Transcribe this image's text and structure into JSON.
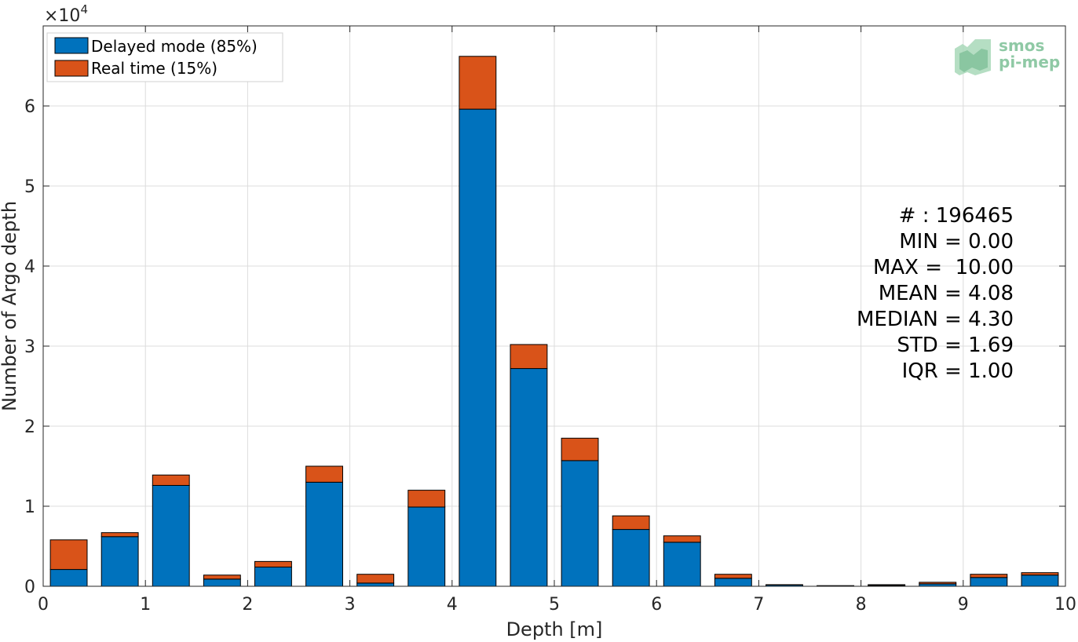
{
  "chart_data": {
    "type": "bar",
    "stacked": true,
    "x": [
      0.25,
      0.75,
      1.25,
      1.75,
      2.25,
      2.75,
      3.25,
      3.75,
      4.25,
      4.75,
      5.25,
      5.75,
      6.25,
      6.75,
      7.25,
      7.75,
      8.25,
      8.75,
      9.25,
      9.75
    ],
    "bin_width": 0.5,
    "series": [
      {
        "name": "Delayed mode (85%)",
        "color": "#0072bd",
        "values": [
          2100,
          6200,
          12600,
          900,
          2400,
          13000,
          400,
          9900,
          59600,
          27200,
          15700,
          7100,
          5500,
          1000,
          150,
          50,
          100,
          300,
          1100,
          1400
        ]
      },
      {
        "name": "Real time (15%)",
        "color": "#d95319",
        "values": [
          3700,
          500,
          1300,
          500,
          700,
          2000,
          1100,
          2100,
          6600,
          3000,
          2800,
          1700,
          800,
          500,
          50,
          30,
          100,
          200,
          400,
          300
        ]
      }
    ],
    "xlabel": "Depth [m]",
    "ylabel": "Number of Argo depth",
    "xlim": [
      0,
      10
    ],
    "ylim": [
      0,
      70000
    ],
    "xticks": [
      "0",
      "1",
      "2",
      "3",
      "4",
      "5",
      "6",
      "7",
      "8",
      "9",
      "10"
    ],
    "yticks": [
      "0",
      "1",
      "2",
      "3",
      "4",
      "5",
      "6"
    ],
    "y_exponent_base": "×10",
    "y_exponent_power": "4",
    "grid": true,
    "legend_position": "top-left",
    "stats": [
      "# : 196465",
      "MIN = 0.00",
      "MAX =  10.00",
      "MEAN = 4.08",
      "MEDIAN = 4.30",
      "STD = 1.69",
      "IQR = 1.00"
    ]
  },
  "logo": {
    "line1": "smos",
    "line2": "pi-mep"
  }
}
